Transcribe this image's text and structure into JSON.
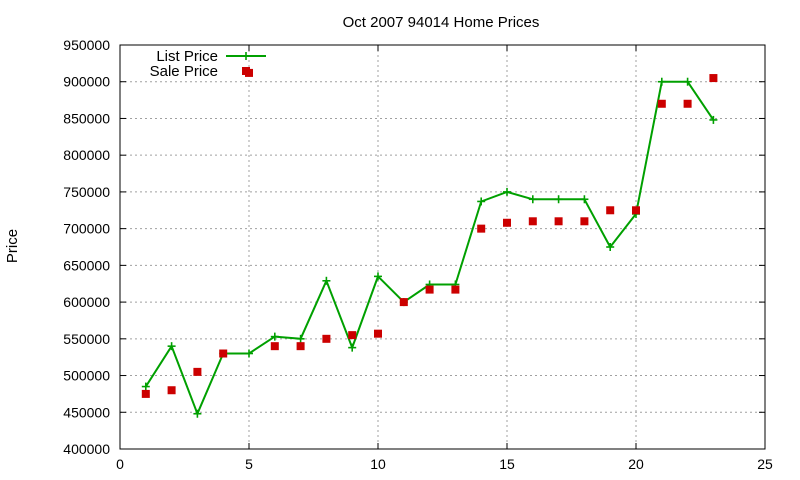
{
  "chart_data": {
    "type": "line",
    "title": "Oct 2007 94014 Home Prices",
    "xlabel": "",
    "ylabel": "Price",
    "xlim": [
      0,
      25
    ],
    "ylim": [
      400000,
      950000
    ],
    "xticks": [
      0,
      5,
      10,
      15,
      20,
      25
    ],
    "yticks": [
      400000,
      450000,
      500000,
      550000,
      600000,
      650000,
      700000,
      750000,
      800000,
      850000,
      900000,
      950000
    ],
    "grid": true,
    "legend_position": "top-left",
    "series": [
      {
        "name": "List Price",
        "style": "line+cross",
        "color": "#00a000",
        "x": [
          1,
          2,
          3,
          4,
          5,
          6,
          7,
          8,
          9,
          10,
          11,
          12,
          13,
          14,
          15,
          16,
          17,
          18,
          19,
          20,
          21,
          22,
          23
        ],
        "y": [
          485000,
          540000,
          448000,
          530000,
          530000,
          553000,
          550000,
          629000,
          538000,
          635000,
          600000,
          624000,
          624000,
          737000,
          750000,
          740000,
          740000,
          740000,
          675000,
          720000,
          900000,
          900000,
          848000
        ]
      },
      {
        "name": "Sale Price",
        "style": "square",
        "color": "#cc0000",
        "x": [
          1,
          2,
          3,
          4,
          5,
          6,
          7,
          8,
          9,
          10,
          11,
          12,
          13,
          14,
          15,
          16,
          17,
          18,
          19,
          20,
          21,
          22,
          23
        ],
        "y": [
          475000,
          480000,
          505000,
          530000,
          912000,
          540000,
          540000,
          550000,
          555000,
          557000,
          600000,
          617000,
          617000,
          700000,
          708000,
          710000,
          710000,
          710000,
          725000,
          725000,
          870000,
          870000,
          905000
        ]
      }
    ]
  }
}
